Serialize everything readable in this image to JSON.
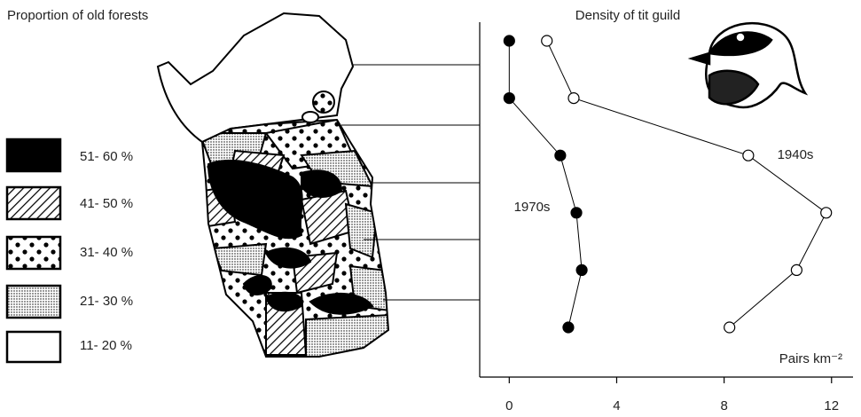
{
  "map": {
    "title": "Proportion of old forests",
    "legend": [
      "51- 60 %",
      "41- 50 %",
      "31- 40 %",
      "21- 30 %",
      "11- 20 %"
    ]
  },
  "chart_data": {
    "type": "line",
    "title": "Density of tit guild",
    "x_label": "Pairs km⁻²",
    "categories": [
      null,
      null,
      null,
      null,
      null,
      null
    ],
    "series": [
      {
        "name": "1970s",
        "color": "#000000",
        "values": [
          0,
          0,
          1.9,
          2.5,
          2.7,
          2.2
        ]
      },
      {
        "name": "1940s",
        "color": "#ffffff",
        "values": [
          1.4,
          2.4,
          8.9,
          11.8,
          10.7,
          8.2
        ]
      }
    ],
    "xlim": [
      -1.1,
      12.8
    ],
    "xticks": [
      0,
      4,
      8,
      12
    ],
    "grid": false
  }
}
